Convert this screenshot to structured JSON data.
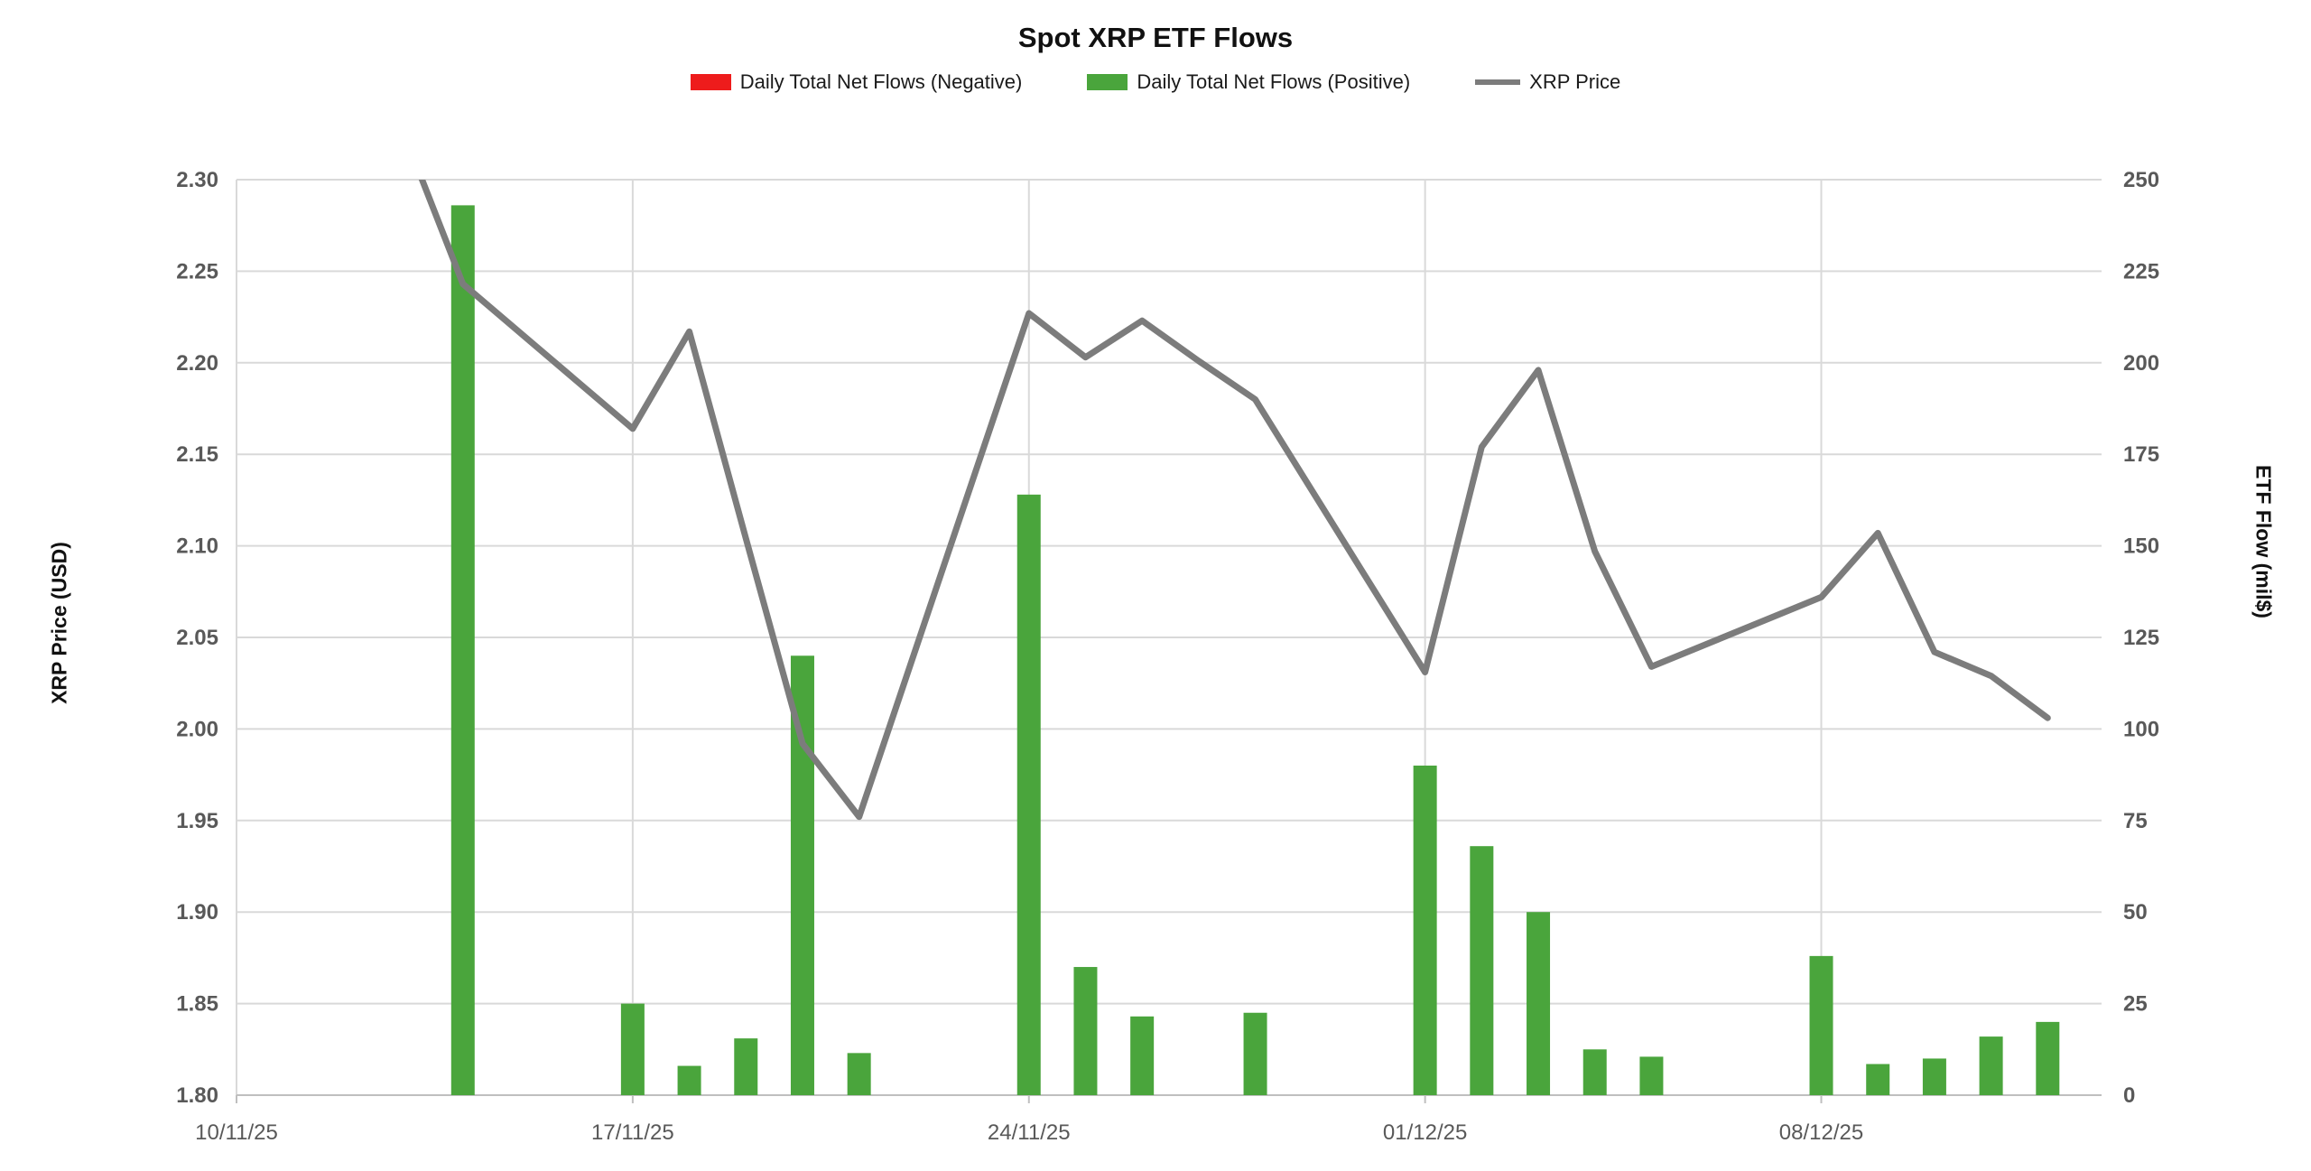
{
  "chart_data": {
    "type": "combo",
    "title": "Spot XRP ETF Flows",
    "legend": [
      {
        "label": "Daily Total Net Flows (Negative)",
        "color": "#ee1c1c",
        "swatch": "rect"
      },
      {
        "label": "Daily Total Net Flows (Positive)",
        "color": "#4aa53c",
        "swatch": "rect"
      },
      {
        "label": "XRP Price",
        "color": "#7c7c7c",
        "swatch": "line"
      }
    ],
    "left_axis": {
      "title": "XRP Price (USD)",
      "min": 1.8,
      "max": 2.3,
      "step": 0.05,
      "tick_labels": [
        "1.80",
        "1.85",
        "1.90",
        "1.95",
        "2.00",
        "2.05",
        "2.10",
        "2.15",
        "2.20",
        "2.25",
        "2.30"
      ]
    },
    "right_axis": {
      "title": "ETF Flow (mil$)",
      "min": 0,
      "max": 250,
      "step": 25,
      "tick_labels": [
        "0",
        "25",
        "50",
        "75",
        "100",
        "125",
        "150",
        "175",
        "200",
        "225",
        "250"
      ]
    },
    "x_axis": {
      "start_date": "10/11/25",
      "end_date": "13/12/25",
      "tick_labels": [
        "10/11/25",
        "17/11/25",
        "24/11/25",
        "01/12/25",
        "08/12/25"
      ],
      "grid": true
    },
    "series": [
      {
        "name": "Daily Total Net Flows (Positive)",
        "type": "bar",
        "axis": "right",
        "color": "#4aa53c",
        "points": [
          {
            "date": "14/11/25",
            "value": 243
          },
          {
            "date": "17/11/25",
            "value": 25
          },
          {
            "date": "18/11/25",
            "value": 8
          },
          {
            "date": "19/11/25",
            "value": 15.5
          },
          {
            "date": "20/11/25",
            "value": 120
          },
          {
            "date": "21/11/25",
            "value": 11.5
          },
          {
            "date": "24/11/25",
            "value": 164
          },
          {
            "date": "25/11/25",
            "value": 35
          },
          {
            "date": "26/11/25",
            "value": 21.5
          },
          {
            "date": "28/11/25",
            "value": 22.5
          },
          {
            "date": "01/12/25",
            "value": 90
          },
          {
            "date": "02/12/25",
            "value": 68
          },
          {
            "date": "03/12/25",
            "value": 50
          },
          {
            "date": "04/12/25",
            "value": 12.5
          },
          {
            "date": "05/12/25",
            "value": 10.5
          },
          {
            "date": "08/12/25",
            "value": 38
          },
          {
            "date": "09/12/25",
            "value": 8.5
          },
          {
            "date": "10/12/25",
            "value": 10
          },
          {
            "date": "11/12/25",
            "value": 16
          },
          {
            "date": "12/12/25",
            "value": 20
          }
        ]
      },
      {
        "name": "Daily Total Net Flows (Negative)",
        "type": "bar",
        "axis": "right",
        "color": "#ee1c1c",
        "points": []
      },
      {
        "name": "XRP Price",
        "type": "line",
        "axis": "left",
        "color": "#7c7c7c",
        "points": [
          {
            "date": "13/11/25",
            "value": 2.322
          },
          {
            "date": "14/11/25",
            "value": 2.243
          },
          {
            "date": "17/11/25",
            "value": 2.164
          },
          {
            "date": "18/11/25",
            "value": 2.217
          },
          {
            "date": "19/11/25",
            "value": 2.104
          },
          {
            "date": "20/11/25",
            "value": 1.992
          },
          {
            "date": "21/11/25",
            "value": 1.952
          },
          {
            "date": "24/11/25",
            "value": 2.227
          },
          {
            "date": "25/11/25",
            "value": 2.203
          },
          {
            "date": "26/11/25",
            "value": 2.223
          },
          {
            "date": "27/11/25",
            "value": 2.201
          },
          {
            "date": "28/11/25",
            "value": 2.18
          },
          {
            "date": "01/12/25",
            "value": 2.031
          },
          {
            "date": "02/12/25",
            "value": 2.154
          },
          {
            "date": "03/12/25",
            "value": 2.196
          },
          {
            "date": "04/12/25",
            "value": 2.097
          },
          {
            "date": "05/12/25",
            "value": 2.034
          },
          {
            "date": "08/12/25",
            "value": 2.072
          },
          {
            "date": "09/12/25",
            "value": 2.107
          },
          {
            "date": "10/12/25",
            "value": 2.042
          },
          {
            "date": "11/12/25",
            "value": 2.029
          },
          {
            "date": "12/12/25",
            "value": 2.006
          }
        ]
      }
    ],
    "colors": {
      "gridline": "#d9d9d9",
      "axis_line": "#bfbfbf",
      "tick_label": "#595959"
    }
  }
}
